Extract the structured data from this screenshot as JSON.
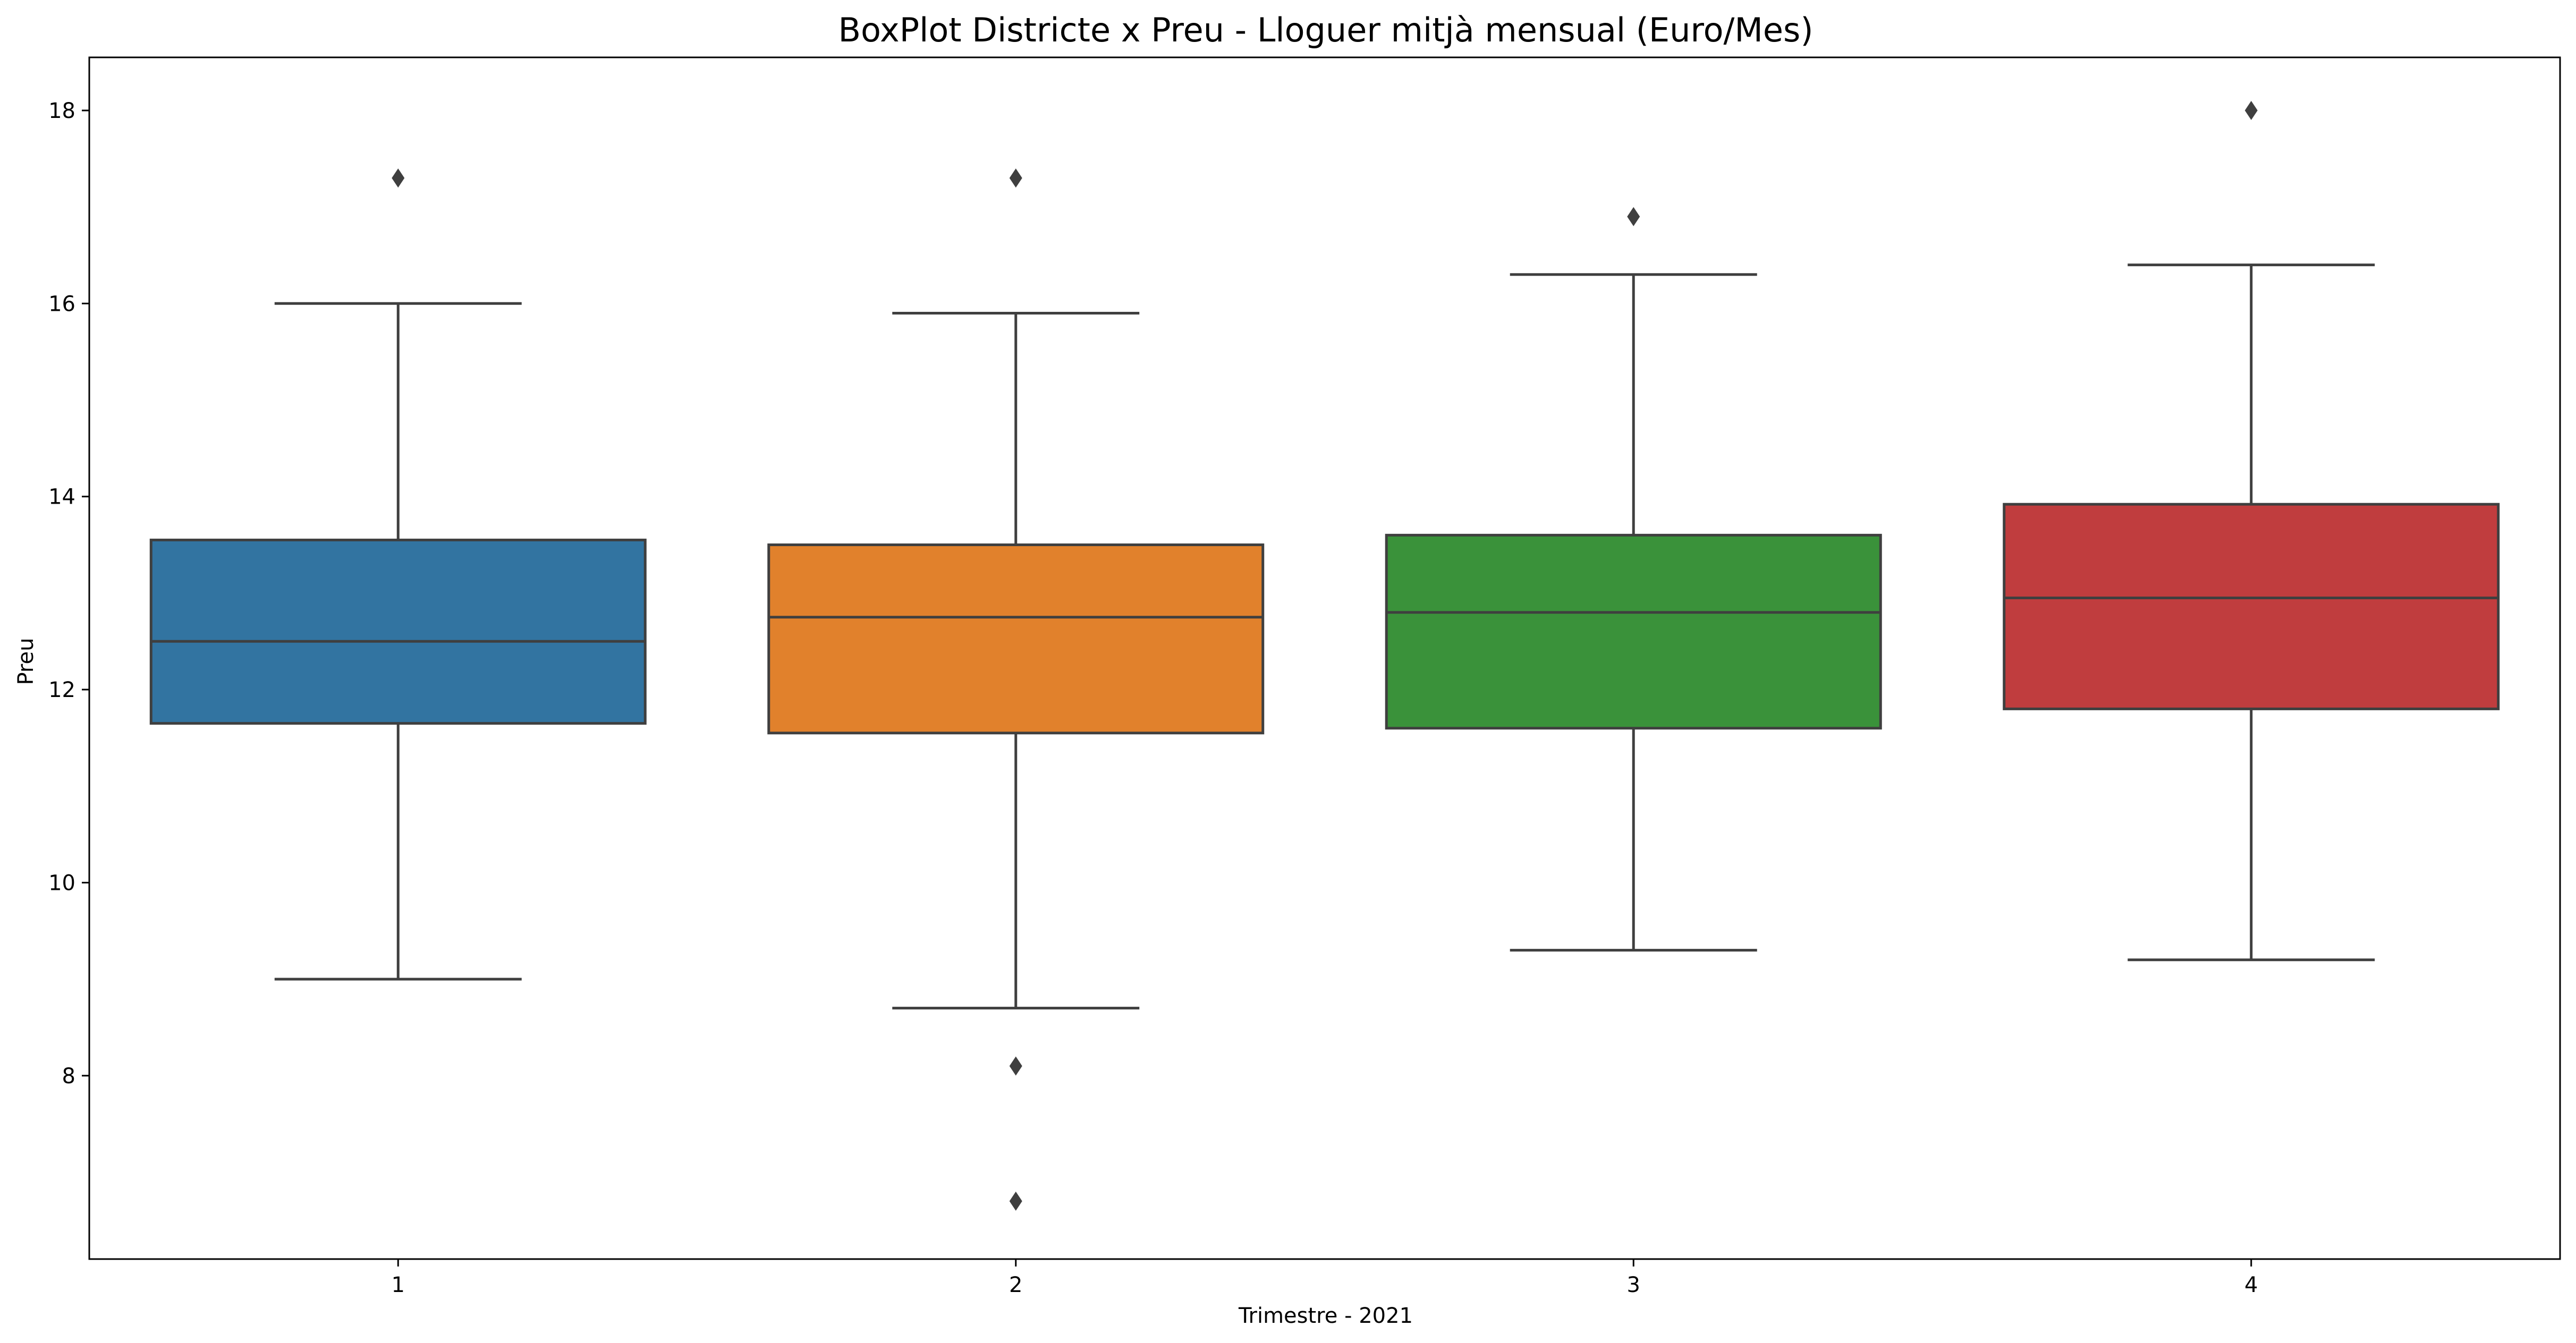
{
  "chart_data": {
    "type": "box",
    "title": "BoxPlot Districte x Preu - Lloguer mitjà mensual (Euro/Mes)",
    "xlabel": "Trimestre - 2021",
    "ylabel": "Preu",
    "categories": [
      "1",
      "2",
      "3",
      "4"
    ],
    "ylim": [
      6.1,
      18.55
    ],
    "yticks": [
      8,
      10,
      12,
      14,
      16,
      18
    ],
    "grid": false,
    "boxes": [
      {
        "category": "1",
        "color": "#3274a1",
        "whisker_low": 9.0,
        "q1": 11.65,
        "median": 12.5,
        "q3": 13.55,
        "whisker_high": 16.0,
        "outliers": [
          17.3
        ]
      },
      {
        "category": "2",
        "color": "#e1812c",
        "whisker_low": 8.7,
        "q1": 11.55,
        "median": 12.75,
        "q3": 13.5,
        "whisker_high": 15.9,
        "outliers": [
          17.3,
          8.1,
          6.7
        ]
      },
      {
        "category": "3",
        "color": "#3a923a",
        "whisker_low": 9.3,
        "q1": 11.6,
        "median": 12.8,
        "q3": 13.6,
        "whisker_high": 16.3,
        "outliers": [
          16.9
        ]
      },
      {
        "category": "4",
        "color": "#c03d3e",
        "whisker_low": 9.2,
        "q1": 11.8,
        "median": 12.95,
        "q3": 13.92,
        "whisker_high": 16.4,
        "outliers": [
          18.0
        ]
      }
    ]
  }
}
